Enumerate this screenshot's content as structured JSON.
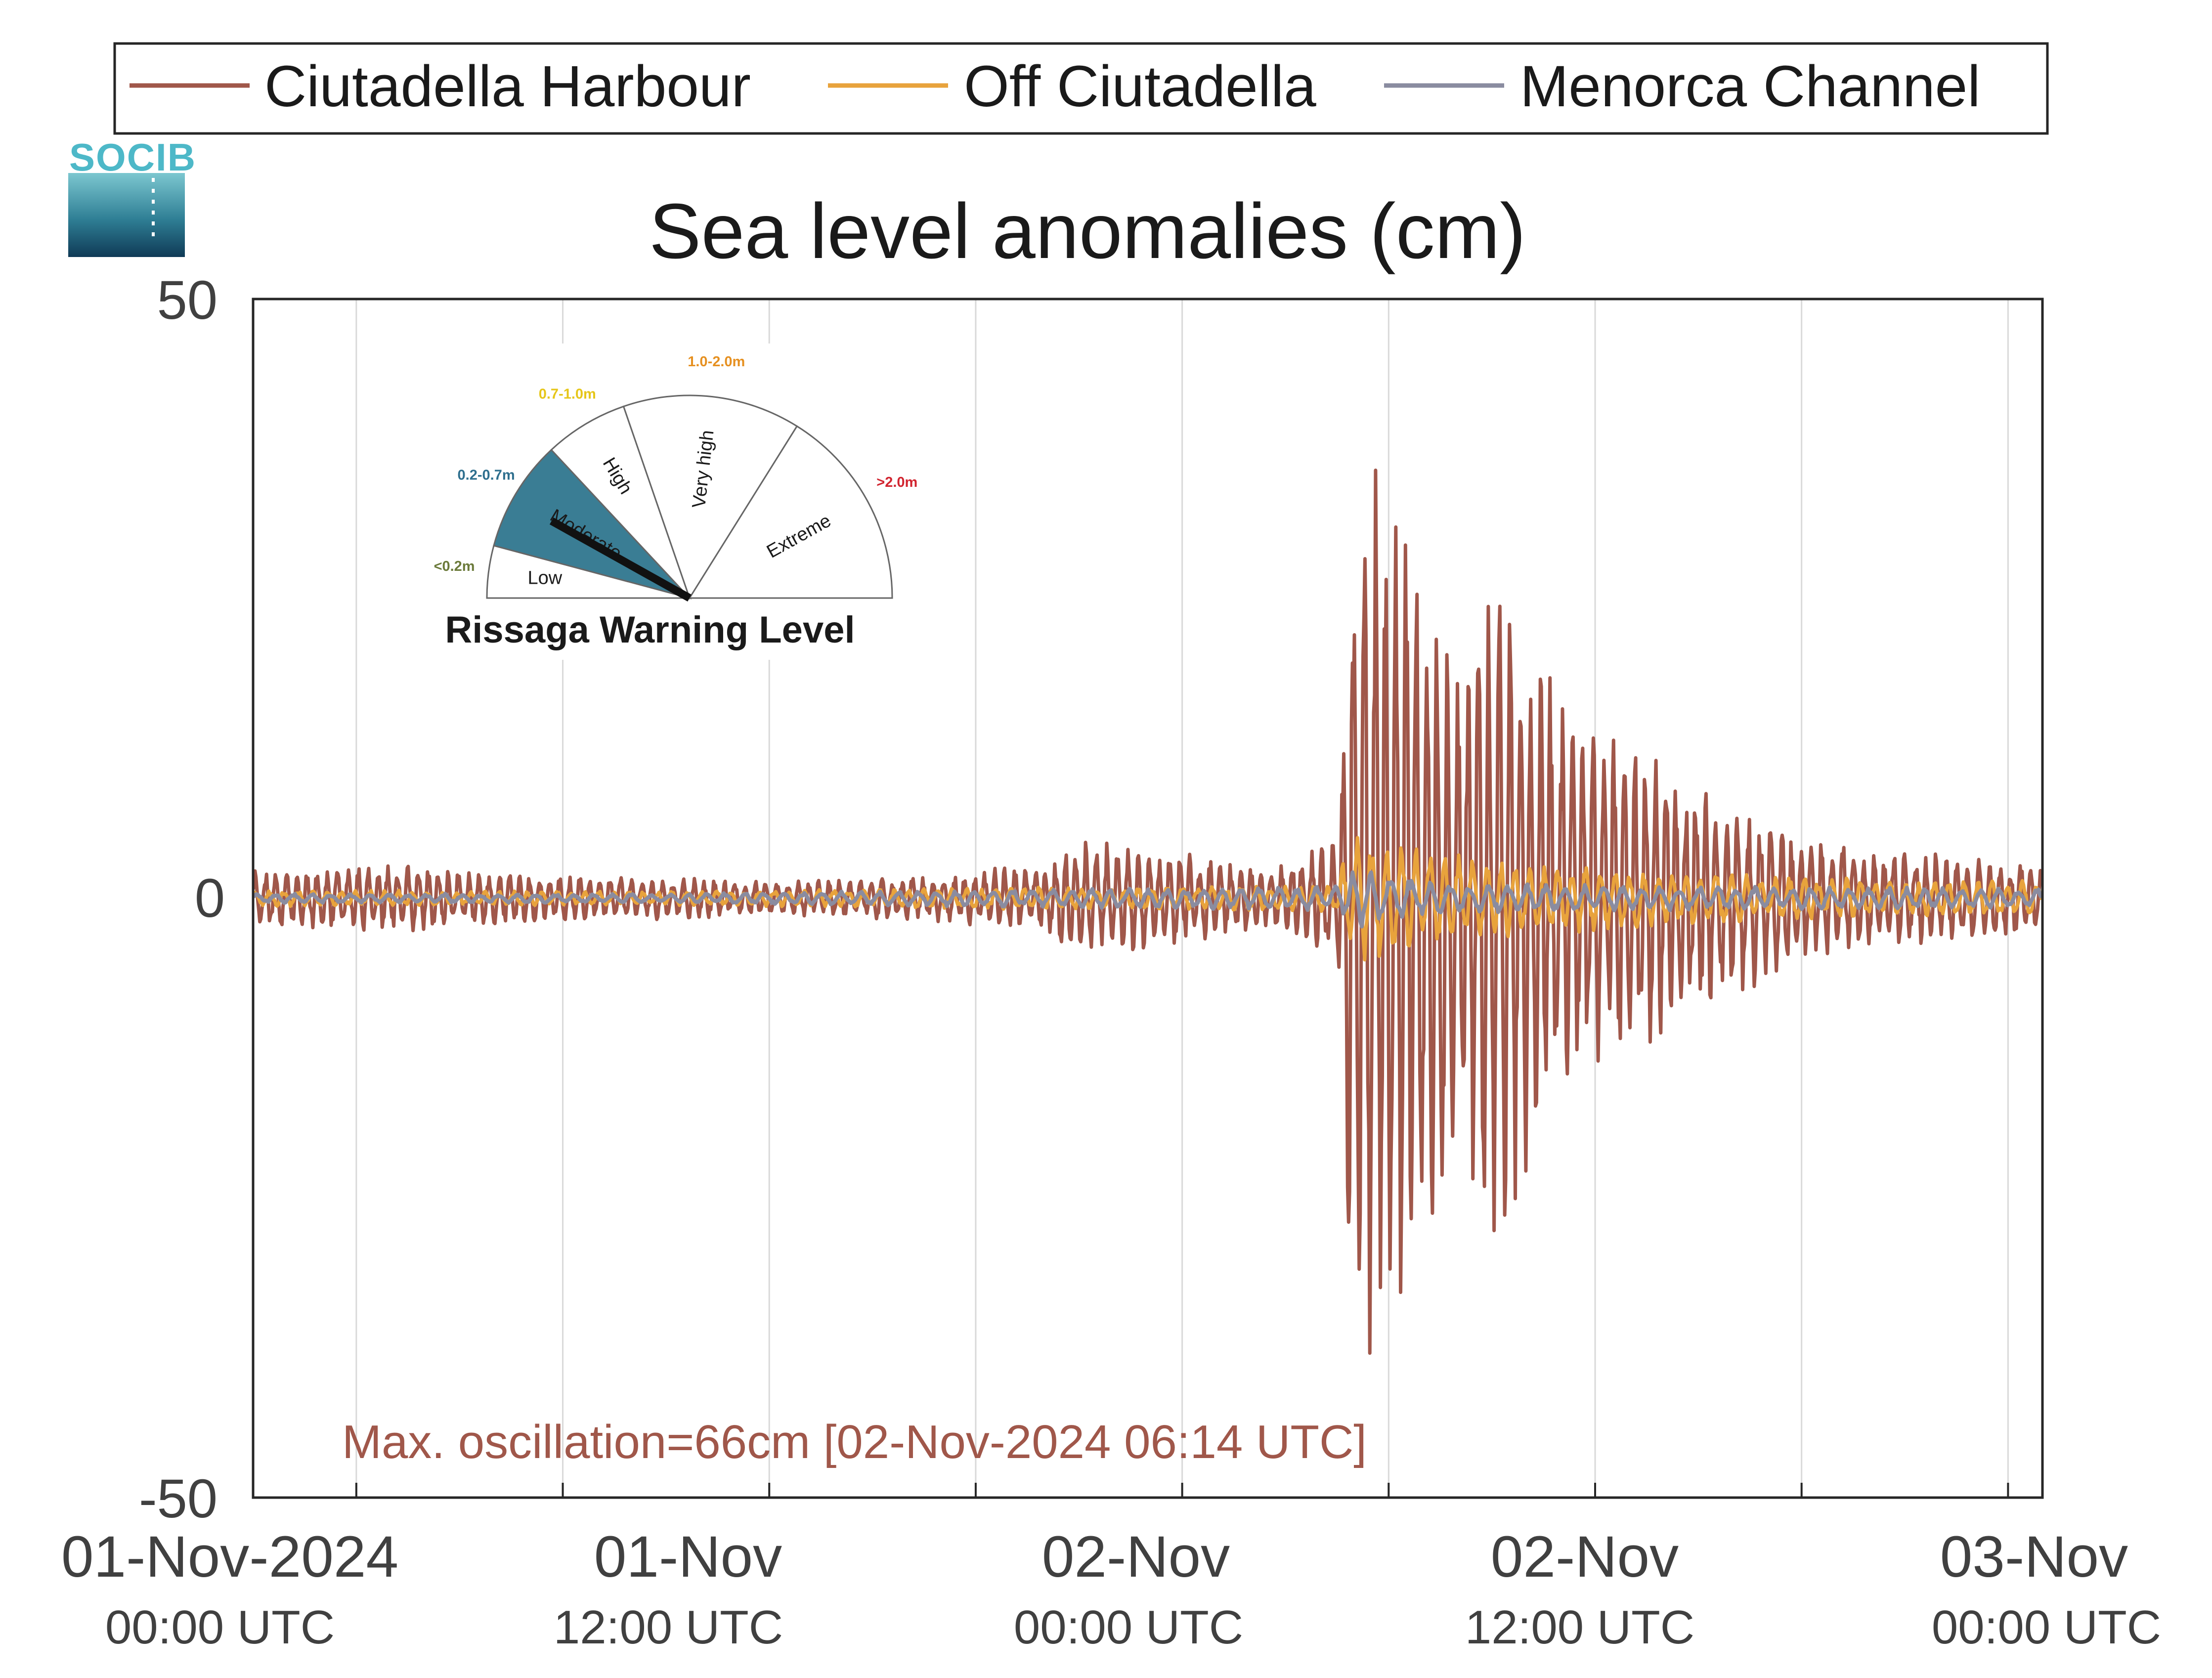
{
  "logo": {
    "text": "SOCIB",
    "color": "#4db8c8"
  },
  "legend": {
    "placement": "top",
    "items": [
      {
        "label": "Ciutadella Harbour",
        "color": "#a0574a"
      },
      {
        "label": "Off Ciutadella",
        "color": "#e8a33c"
      },
      {
        "label": "Menorca Channel",
        "color": "#8a8ca0"
      }
    ]
  },
  "chart_data": {
    "type": "line",
    "title": "Sea level anomalies (cm)",
    "xlabel": "",
    "ylabel": "",
    "ylim": [
      -50,
      50
    ],
    "yticks": [
      "50",
      "0",
      "-50"
    ],
    "x_range_hours": [
      0,
      52
    ],
    "grid": "vertical",
    "xticks": [
      {
        "line1": "01-Nov-2024",
        "line2": "00:00 UTC"
      },
      {
        "line1": "01-Nov",
        "line2": "12:00 UTC"
      },
      {
        "line1": "02-Nov",
        "line2": "00:00 UTC"
      },
      {
        "line1": "02-Nov",
        "line2": "12:00 UTC"
      },
      {
        "line1": "03-Nov",
        "line2": "00:00 UTC"
      }
    ],
    "series": [
      {
        "name": "Ciutadella Harbour",
        "color": "#a0574a",
        "envelope_hours": [
          0,
          4,
          8,
          12,
          16,
          20,
          23,
          24,
          27,
          29.5,
          31.5,
          32,
          33,
          34,
          35,
          36,
          38,
          40,
          42,
          44,
          46,
          48,
          50,
          52
        ],
        "envelope_cm": [
          2.5,
          3,
          2,
          1.8,
          1.5,
          2,
          3,
          5,
          4,
          2.5,
          5,
          38,
          36,
          30,
          20,
          30,
          17,
          14,
          10,
          7,
          5,
          4,
          3.5,
          3
        ]
      },
      {
        "name": "Off Ciutadella",
        "color": "#e8a33c",
        "envelope_hours": [
          0,
          12,
          24,
          28,
          31.5,
          32,
          34,
          36,
          40,
          44,
          48,
          52
        ],
        "envelope_cm": [
          0.7,
          0.6,
          1,
          1,
          1.2,
          6.5,
          4,
          3.5,
          2.5,
          2,
          1.5,
          1.5
        ]
      },
      {
        "name": "Menorca Channel",
        "color": "#8a8ca0",
        "envelope_hours": [
          0,
          12,
          24,
          31.5,
          32,
          34,
          36,
          44,
          52
        ],
        "envelope_cm": [
          0.4,
          0.4,
          0.8,
          1,
          2.5,
          1.5,
          1.2,
          1,
          0.8
        ]
      }
    ],
    "annotation": {
      "text": "Max. oscillation=66cm [02-Nov-2024 06:14 UTC]",
      "color": "#a0574a"
    }
  },
  "gauge": {
    "title": "Rissaga Warning Level",
    "active_level": "Moderate",
    "needle_fraction": 0.14,
    "categories": [
      {
        "label": "Low",
        "range": "<0.2m",
        "range_color": "#6b7a3a"
      },
      {
        "label": "Moderate",
        "range": "0.2-0.7m",
        "range_color": "#2e6f8e"
      },
      {
        "label": "High",
        "range": "0.7-1.0m",
        "range_color": "#e6c619"
      },
      {
        "label": "Very high",
        "range": "1.0-2.0m",
        "range_color": "#e69020"
      },
      {
        "label": "Extreme",
        "range": ">2.0m",
        "range_color": "#d1242f"
      }
    ],
    "active_color": "#3a7d94"
  }
}
